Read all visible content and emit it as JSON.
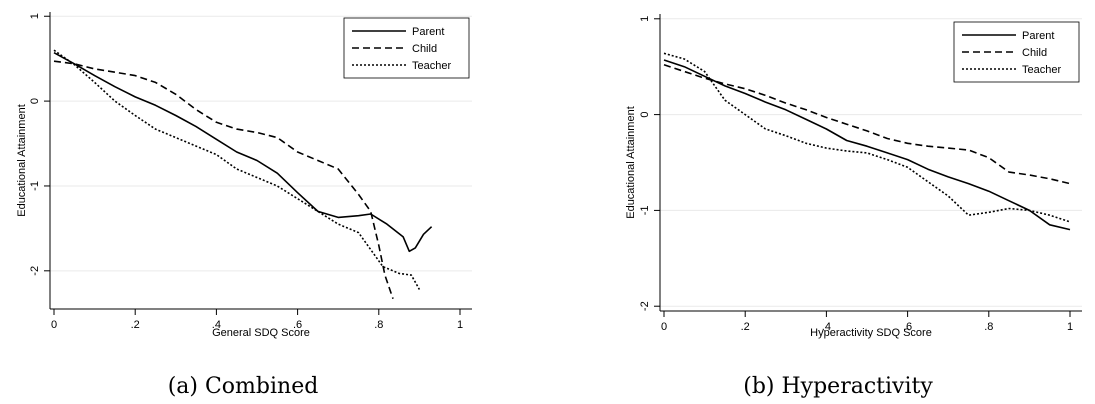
{
  "chart_data": [
    {
      "type": "line",
      "title": "",
      "caption": "(a) Combined",
      "xlabel": "General SDQ Score",
      "ylabel": "Educational Attainment",
      "xlim": [
        0,
        1
      ],
      "ylim": [
        -2.45,
        1.05
      ],
      "xticks": [
        0,
        0.2,
        0.4,
        0.6,
        0.8,
        1
      ],
      "xtick_labels": [
        "0",
        ".2",
        ".4",
        ".6",
        ".8",
        "1"
      ],
      "yticks": [
        -2,
        -1,
        0,
        1
      ],
      "ytick_labels": [
        "-2",
        "-1",
        "0",
        "1"
      ],
      "grid": "horizontal",
      "legend_position": "top-right",
      "series": [
        {
          "name": "Parent",
          "style": "solid",
          "x": [
            0,
            0.05,
            0.1,
            0.15,
            0.2,
            0.25,
            0.3,
            0.35,
            0.4,
            0.45,
            0.5,
            0.55,
            0.6,
            0.65,
            0.7,
            0.75,
            0.78,
            0.82,
            0.86,
            0.875,
            0.89,
            0.91,
            0.93
          ],
          "y": [
            0.57,
            0.44,
            0.3,
            0.17,
            0.05,
            -0.05,
            -0.17,
            -0.3,
            -0.45,
            -0.6,
            -0.7,
            -0.85,
            -1.08,
            -1.3,
            -1.37,
            -1.35,
            -1.33,
            -1.45,
            -1.6,
            -1.77,
            -1.73,
            -1.57,
            -1.48
          ]
        },
        {
          "name": "Child",
          "style": "dashed",
          "x": [
            0,
            0.05,
            0.1,
            0.15,
            0.2,
            0.25,
            0.3,
            0.35,
            0.4,
            0.45,
            0.5,
            0.55,
            0.6,
            0.65,
            0.7,
            0.75,
            0.78,
            0.8,
            0.815,
            0.835
          ],
          "y": [
            0.47,
            0.44,
            0.38,
            0.34,
            0.3,
            0.22,
            0.08,
            -0.1,
            -0.25,
            -0.33,
            -0.37,
            -0.43,
            -0.6,
            -0.7,
            -0.8,
            -1.1,
            -1.3,
            -1.7,
            -2.05,
            -2.33
          ]
        },
        {
          "name": "Teacher",
          "style": "dotted",
          "x": [
            0,
            0.05,
            0.1,
            0.15,
            0.2,
            0.25,
            0.3,
            0.35,
            0.4,
            0.45,
            0.5,
            0.55,
            0.6,
            0.65,
            0.7,
            0.75,
            0.78,
            0.81,
            0.85,
            0.88,
            0.9
          ],
          "y": [
            0.6,
            0.43,
            0.22,
            0.0,
            -0.17,
            -0.33,
            -0.43,
            -0.53,
            -0.63,
            -0.8,
            -0.9,
            -1.0,
            -1.15,
            -1.3,
            -1.45,
            -1.55,
            -1.75,
            -1.95,
            -2.03,
            -2.05,
            -2.22
          ]
        }
      ]
    },
    {
      "type": "line",
      "title": "",
      "caption": "(b) Hyperactivity",
      "xlabel": "Hyperactivity SDQ Score",
      "ylabel": "Educational Attainment",
      "xlim": [
        0,
        1
      ],
      "ylim": [
        -2.05,
        1.05
      ],
      "xticks": [
        0,
        0.2,
        0.4,
        0.6,
        0.8,
        1
      ],
      "xtick_labels": [
        "0",
        ".2",
        ".4",
        ".6",
        ".8",
        "1"
      ],
      "yticks": [
        -2,
        -1,
        0,
        1
      ],
      "ytick_labels": [
        "-2",
        "-1",
        "0",
        "1"
      ],
      "grid": "horizontal",
      "legend_position": "top-right",
      "series": [
        {
          "name": "Parent",
          "style": "solid",
          "x": [
            0,
            0.05,
            0.1,
            0.15,
            0.2,
            0.25,
            0.3,
            0.35,
            0.4,
            0.45,
            0.5,
            0.55,
            0.6,
            0.65,
            0.7,
            0.75,
            0.8,
            0.85,
            0.9,
            0.95,
            1
          ],
          "y": [
            0.57,
            0.5,
            0.4,
            0.3,
            0.22,
            0.13,
            0.05,
            -0.05,
            -0.15,
            -0.27,
            -0.33,
            -0.4,
            -0.47,
            -0.57,
            -0.65,
            -0.72,
            -0.8,
            -0.9,
            -1.0,
            -1.15,
            -1.2
          ]
        },
        {
          "name": "Child",
          "style": "dashed",
          "x": [
            0,
            0.05,
            0.1,
            0.15,
            0.2,
            0.25,
            0.3,
            0.35,
            0.4,
            0.45,
            0.5,
            0.55,
            0.6,
            0.65,
            0.7,
            0.75,
            0.8,
            0.85,
            0.9,
            0.95,
            1
          ],
          "y": [
            0.52,
            0.45,
            0.38,
            0.32,
            0.27,
            0.2,
            0.12,
            0.05,
            -0.03,
            -0.1,
            -0.17,
            -0.25,
            -0.3,
            -0.33,
            -0.35,
            -0.37,
            -0.45,
            -0.6,
            -0.63,
            -0.67,
            -0.72
          ]
        },
        {
          "name": "Teacher",
          "style": "dotted",
          "x": [
            0,
            0.05,
            0.1,
            0.15,
            0.2,
            0.25,
            0.3,
            0.35,
            0.4,
            0.45,
            0.5,
            0.55,
            0.6,
            0.65,
            0.7,
            0.75,
            0.8,
            0.85,
            0.9,
            0.95,
            1
          ],
          "y": [
            0.64,
            0.58,
            0.45,
            0.15,
            0.0,
            -0.15,
            -0.22,
            -0.3,
            -0.35,
            -0.38,
            -0.4,
            -0.47,
            -0.55,
            -0.7,
            -0.85,
            -1.05,
            -1.02,
            -0.98,
            -1.0,
            -1.05,
            -1.12
          ]
        }
      ]
    }
  ]
}
